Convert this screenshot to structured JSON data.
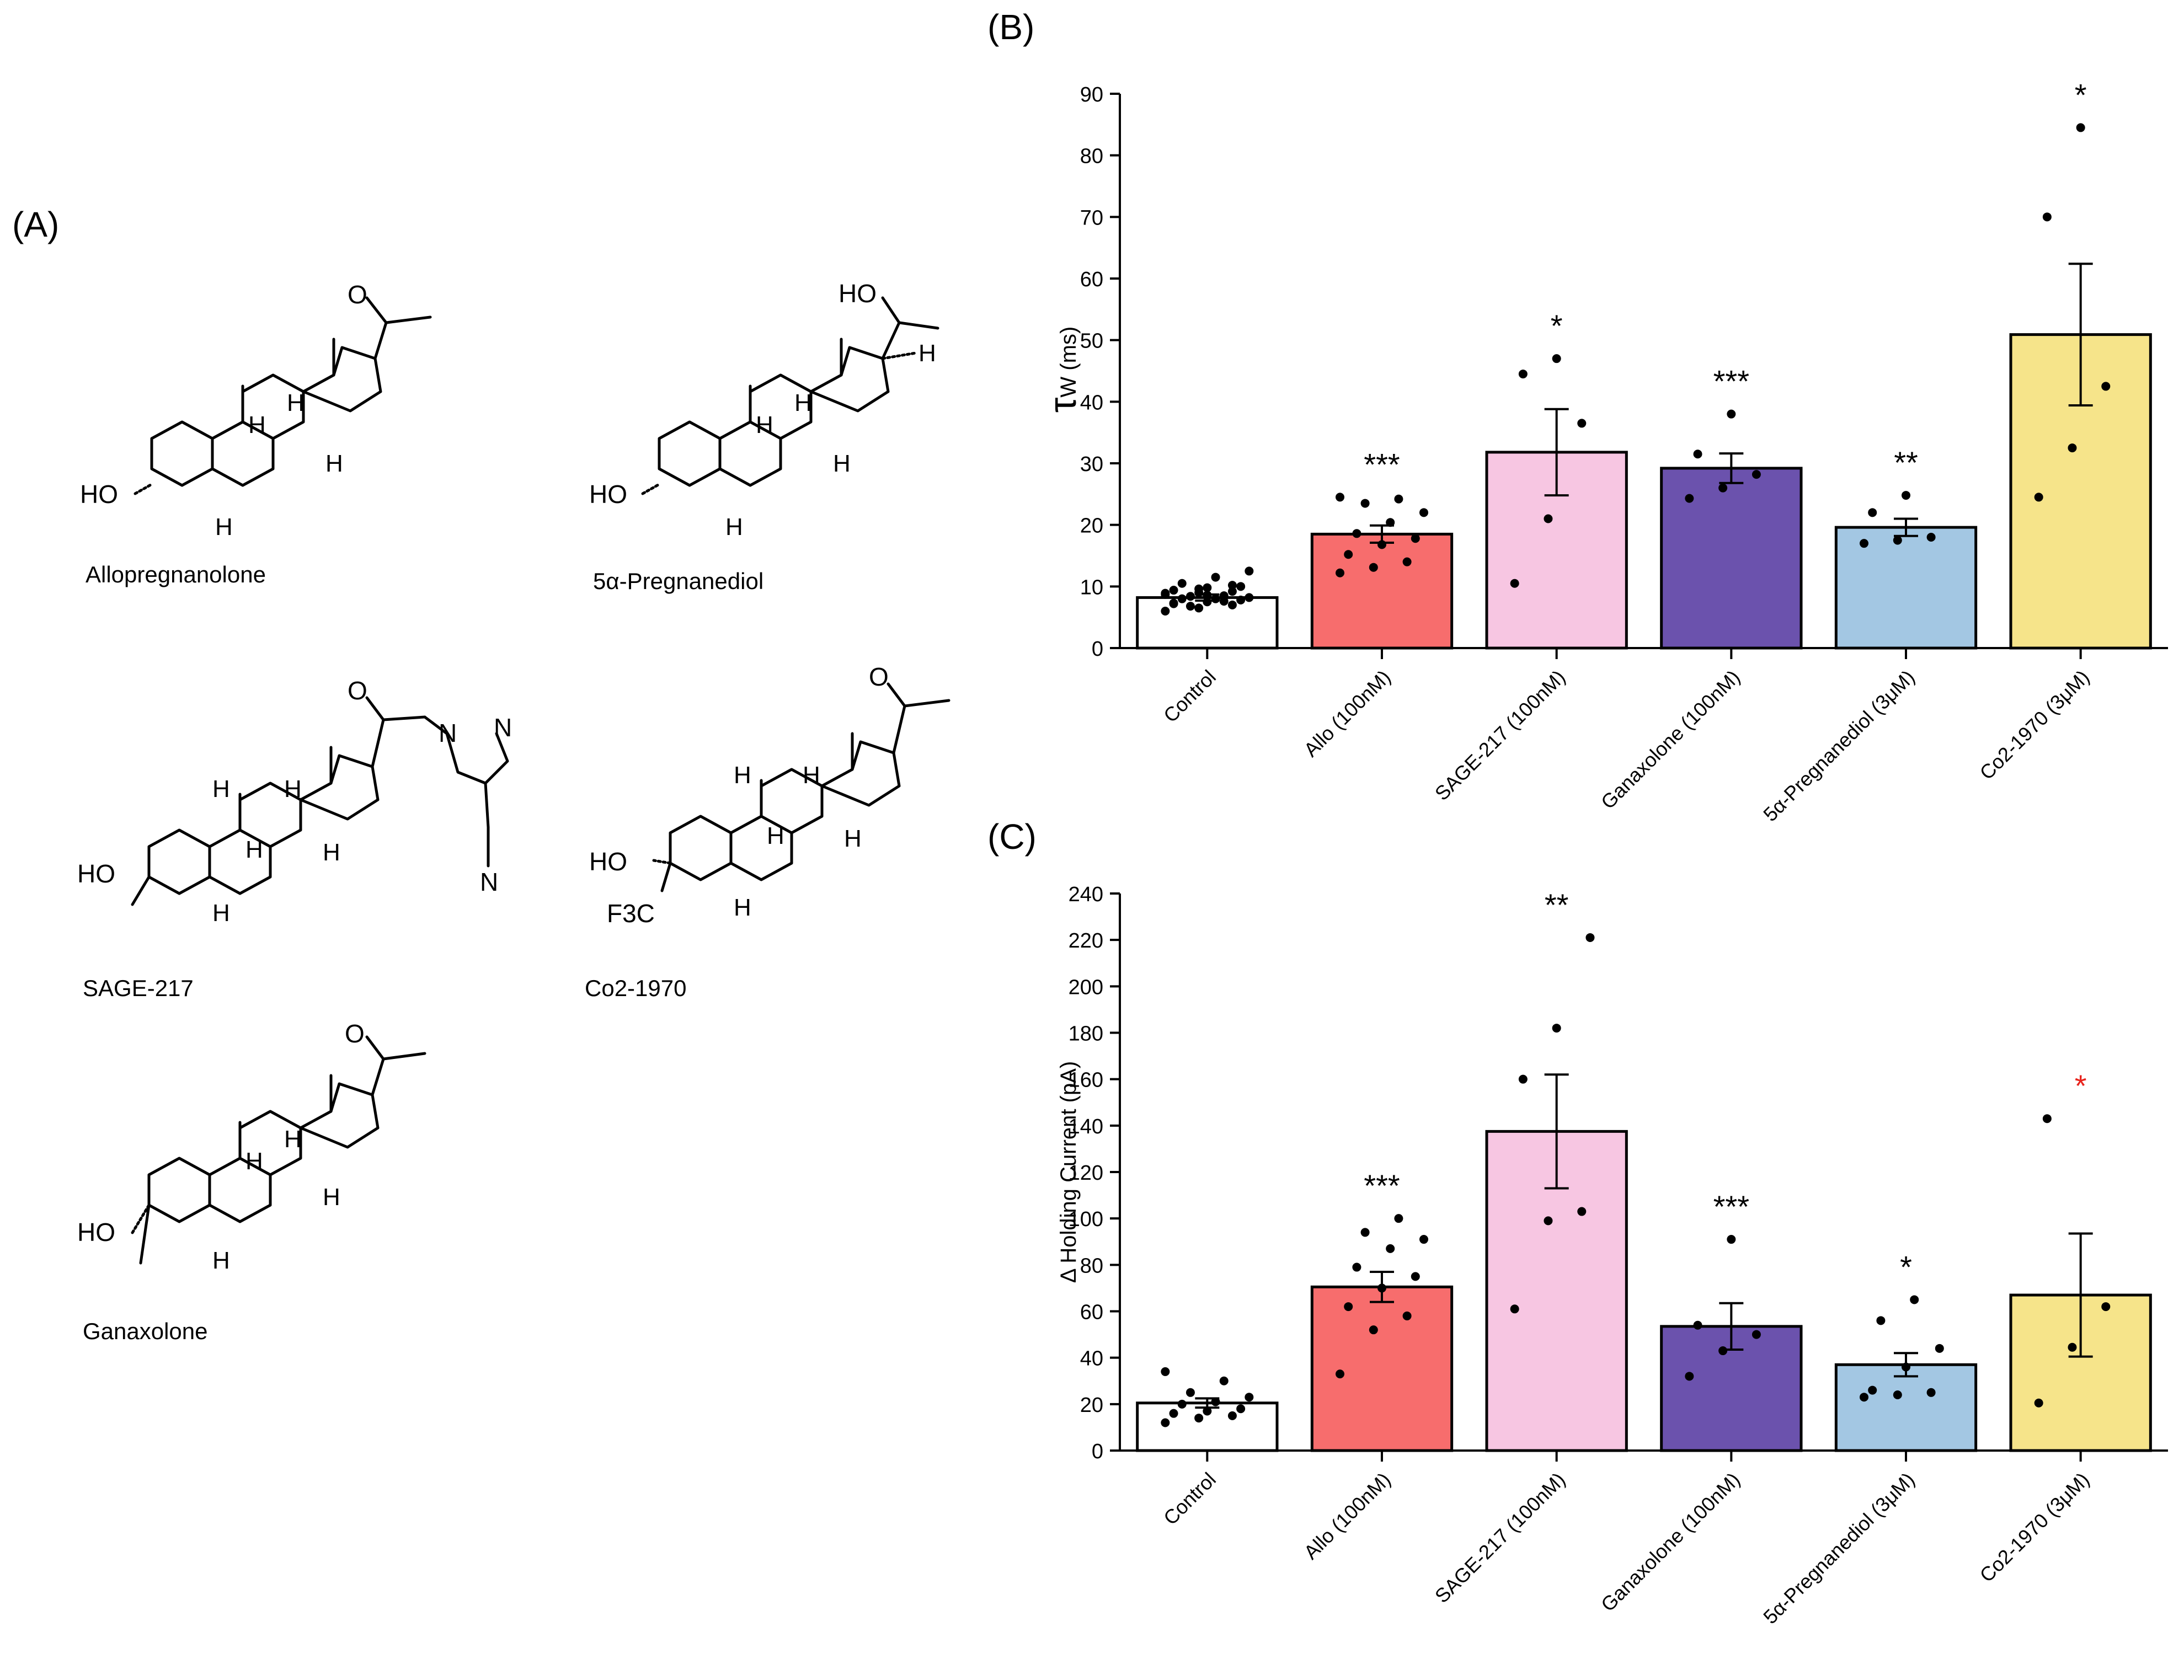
{
  "panels": {
    "A": "(A)",
    "B": "(B)",
    "C": "(C)"
  },
  "structures": {
    "names": [
      "Allopregnanolone",
      "5α-Pregnanediol",
      "SAGE-217",
      "Co2-1970",
      "Ganaxolone"
    ],
    "atoms": {
      "O": "O",
      "HO": "HO",
      "H": "H",
      "N": "N",
      "F3C": "F3C"
    }
  },
  "colors": {
    "control": "#ffffff",
    "allo": "#f76d6d",
    "sage": "#f7c6e2",
    "ganaxolone": "#6b52ad",
    "pregnanediol": "#a3c7e3",
    "co2": "#f6e48a",
    "axis": "#000000",
    "red_star": "#e8231c"
  },
  "chart_data": [
    {
      "type": "bar",
      "panel": "B",
      "ylabel_symbol": "τ",
      "ylabel": "W (ms)",
      "categories": [
        "Control",
        "Allo (100nM)",
        "SAGE-217 (100nM)",
        "Ganaxolone (100nM)",
        "5α-Pregnanediol (3μM)",
        "Co2-1970 (3μM)"
      ],
      "values": [
        8.2,
        18.5,
        31.8,
        29.2,
        19.6,
        50.9
      ],
      "sem": [
        0.5,
        1.4,
        7.0,
        2.4,
        1.4,
        11.5
      ],
      "significance": [
        "",
        "***",
        "*",
        "***",
        "**",
        "*"
      ],
      "significance_colors": [
        "#000000",
        "#000000",
        "#000000",
        "#000000",
        "#000000",
        "#000000"
      ],
      "points": [
        [
          6.0,
          6.5,
          7.0,
          7.3,
          7.5,
          7.8,
          8.0,
          8.0,
          8.2,
          8.4,
          8.5,
          8.7,
          9.0,
          9.2,
          9.4,
          9.8,
          10.0,
          10.5,
          11.5,
          12.5,
          6.8,
          7.6,
          8.9,
          9.6,
          10.2,
          7.2,
          8.6
        ],
        [
          12.2,
          13.1,
          14.0,
          15.2,
          16.8,
          17.8,
          18.6,
          20.4,
          22.0,
          23.5,
          24.2,
          24.5
        ],
        [
          10.5,
          21.0,
          36.5,
          44.5,
          47.0
        ],
        [
          24.3,
          26.0,
          28.2,
          31.5,
          38.0
        ],
        [
          17.0,
          17.5,
          18.0,
          22.0,
          24.8
        ],
        [
          24.5,
          32.5,
          42.5,
          70.0,
          84.5
        ]
      ],
      "ylim": [
        0,
        90
      ],
      "yticks": [
        0,
        10,
        20,
        30,
        40,
        50,
        60,
        70,
        80,
        90
      ]
    },
    {
      "type": "bar",
      "panel": "C",
      "ylabel": "Δ Holding Current (pA)",
      "categories": [
        "Control",
        "Allo (100nM)",
        "SAGE-217 (100nM)",
        "Ganaxolone (100nM)",
        "5α-Pregnanediol (3μM)",
        "Co2-1970 (3μM)"
      ],
      "values": [
        20.5,
        70.5,
        137.5,
        53.5,
        37.0,
        67.0
      ],
      "sem": [
        2.0,
        6.5,
        24.5,
        10.0,
        5.0,
        26.5
      ],
      "significance": [
        "",
        "***",
        "**",
        "***",
        "*",
        "*"
      ],
      "significance_colors": [
        "#000000",
        "#000000",
        "#000000",
        "#000000",
        "#000000",
        "#e8231c"
      ],
      "points": [
        [
          12.0,
          14.0,
          15.0,
          16.0,
          17.0,
          18.0,
          20.0,
          21.0,
          23.0,
          25.0,
          30.0,
          34.0
        ],
        [
          33.0,
          52.0,
          58.0,
          62.0,
          70.0,
          75.0,
          79.0,
          87.0,
          91.0,
          94.0,
          100.0
        ],
        [
          61.0,
          99.0,
          103.0,
          160.0,
          182.0,
          221.0
        ],
        [
          32.0,
          43.0,
          50.0,
          54.0,
          91.0
        ],
        [
          23.0,
          24.0,
          25.0,
          26.0,
          36.0,
          44.0,
          56.0,
          65.0
        ],
        [
          20.5,
          44.5,
          62.0,
          143.0
        ]
      ],
      "ylim": [
        0,
        240
      ],
      "yticks": [
        0,
        20,
        40,
        60,
        80,
        100,
        120,
        140,
        160,
        180,
        200,
        220,
        240
      ]
    }
  ]
}
